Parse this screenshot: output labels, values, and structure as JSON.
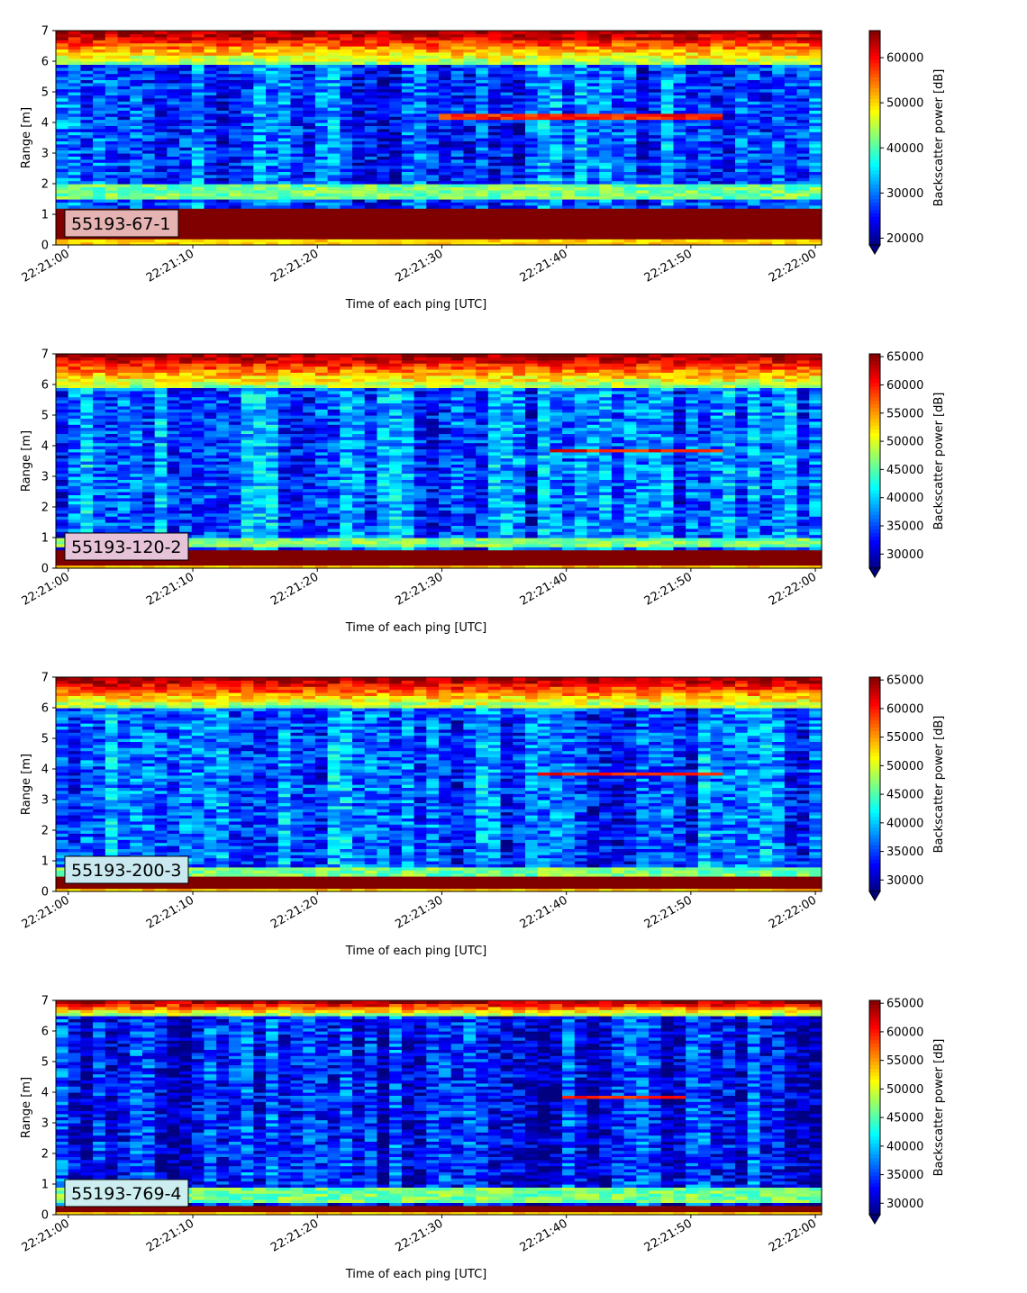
{
  "chart_data": [
    {
      "type": "heatmap",
      "panel_label": "55193-67-1",
      "panel_label_bg": "#e6b3b3",
      "xlabel": "Time of each ping [UTC]",
      "ylabel": "Range [m]",
      "x_ticks": [
        "22:21:00",
        "22:21:10",
        "22:21:20",
        "22:21:30",
        "22:21:40",
        "22:21:50",
        "22:22:00"
      ],
      "xlim": [
        "22:20:59",
        "22:22:00.5"
      ],
      "y_ticks": [
        0,
        1,
        2,
        3,
        4,
        5,
        6,
        7
      ],
      "ylim": [
        0,
        7
      ],
      "colorbar": {
        "label": "Backscatter power [dB]",
        "vmin": 18500,
        "vmax": 66000,
        "ticks": [
          20000,
          30000,
          40000,
          50000,
          60000
        ],
        "extend": "min",
        "colormap": "jet"
      },
      "features": {
        "bottom_strong": [
          0.25,
          1.15
        ],
        "band_near": [
          1.5,
          2.0
        ],
        "surface": [
          5.9,
          7.0
        ],
        "scatter_layer": {
          "range": 4.2,
          "t_start": "22:21:30",
          "t_end": "22:21:53"
        },
        "background_level": 28000
      }
    },
    {
      "type": "heatmap",
      "panel_label": "55193-120-2",
      "panel_label_bg": "#e6c3d8",
      "xlabel": "Time of each ping [UTC]",
      "ylabel": "Range [m]",
      "x_ticks": [
        "22:21:00",
        "22:21:10",
        "22:21:20",
        "22:21:30",
        "22:21:40",
        "22:21:50",
        "22:22:00"
      ],
      "xlim": [
        "22:20:59",
        "22:22:00.5"
      ],
      "y_ticks": [
        0,
        1,
        2,
        3,
        4,
        5,
        6,
        7
      ],
      "ylim": [
        0,
        7
      ],
      "colorbar": {
        "label": "Backscatter power [dB]",
        "vmin": 27500,
        "vmax": 65500,
        "ticks": [
          30000,
          35000,
          40000,
          45000,
          50000,
          55000,
          60000,
          65000
        ],
        "extend": "min",
        "colormap": "jet"
      },
      "features": {
        "bottom_strong": [
          0.15,
          0.6
        ],
        "band_near": [
          0.7,
          1.0
        ],
        "surface": [
          5.9,
          7.0
        ],
        "scatter_layer": {
          "range": 3.85,
          "t_start": "22:21:39",
          "t_end": "22:21:53"
        },
        "background_level": 36000
      }
    },
    {
      "type": "heatmap",
      "panel_label": "55193-200-3",
      "panel_label_bg": "#c9e8ef",
      "xlabel": "Time of each ping [UTC]",
      "ylabel": "Range [m]",
      "x_ticks": [
        "22:21:00",
        "22:21:10",
        "22:21:20",
        "22:21:30",
        "22:21:40",
        "22:21:50",
        "22:22:00"
      ],
      "xlim": [
        "22:20:59",
        "22:22:00.5"
      ],
      "y_ticks": [
        0,
        1,
        2,
        3,
        4,
        5,
        6,
        7
      ],
      "ylim": [
        0,
        7
      ],
      "colorbar": {
        "label": "Backscatter power [dB]",
        "vmin": 28000,
        "vmax": 65500,
        "ticks": [
          30000,
          35000,
          40000,
          45000,
          50000,
          55000,
          60000,
          65000
        ],
        "extend": "min",
        "colormap": "jet"
      },
      "features": {
        "bottom_strong": [
          0.1,
          0.45
        ],
        "band_near": [
          0.5,
          0.8
        ],
        "surface": [
          6.0,
          7.0
        ],
        "scatter_layer": {
          "range": 3.85,
          "t_start": "22:21:38",
          "t_end": "22:21:53"
        },
        "background_level": 36000
      }
    },
    {
      "type": "heatmap",
      "panel_label": "55193-769-4",
      "panel_label_bg": "#cdeef0",
      "xlabel": "Time of each ping [UTC]",
      "ylabel": "Range [m]",
      "x_ticks": [
        "22:21:00",
        "22:21:10",
        "22:21:20",
        "22:21:30",
        "22:21:40",
        "22:21:50",
        "22:22:00"
      ],
      "xlim": [
        "22:20:59",
        "22:22:00.5"
      ],
      "y_ticks": [
        0,
        1,
        2,
        3,
        4,
        5,
        6,
        7
      ],
      "ylim": [
        0,
        7
      ],
      "colorbar": {
        "label": "Backscatter power [dB]",
        "vmin": 28000,
        "vmax": 65500,
        "ticks": [
          30000,
          35000,
          40000,
          45000,
          50000,
          55000,
          60000,
          65000
        ],
        "extend": "min",
        "colormap": "jet"
      },
      "features": {
        "bottom_strong": [
          0.15,
          0.35
        ],
        "band_near": [
          0.4,
          0.9
        ],
        "surface": [
          6.5,
          7.0
        ],
        "scatter_layer": {
          "range": 3.85,
          "t_start": "22:21:40",
          "t_end": "22:21:50"
        },
        "background_level": 33000
      }
    }
  ]
}
